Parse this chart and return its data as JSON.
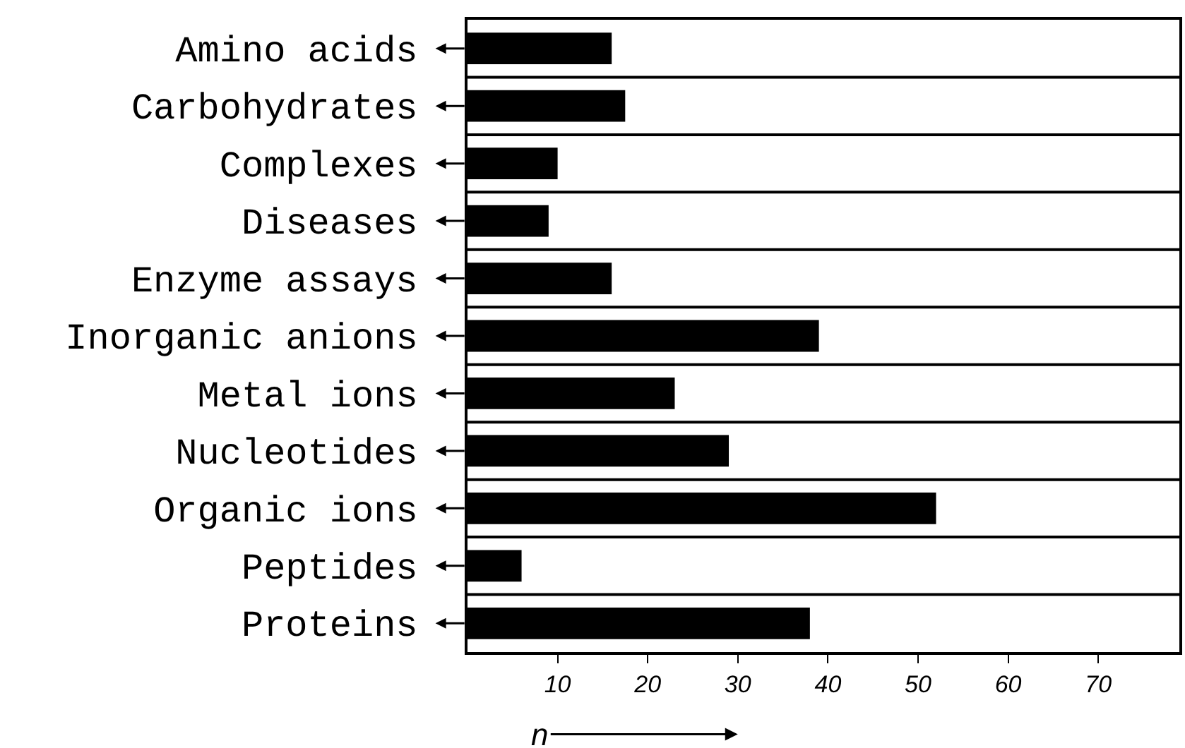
{
  "chart_data": {
    "type": "bar",
    "orientation": "horizontal",
    "xlabel": "n",
    "categories": [
      "Amino acids",
      "Carbohydrates",
      "Complexes",
      "Diseases",
      "Enzyme assays",
      "Inorganic anions",
      "Metal ions",
      "Nucleotides",
      "Organic ions",
      "Peptides",
      "Proteins"
    ],
    "values": [
      16,
      17.5,
      10,
      9,
      16,
      39,
      23,
      29,
      52,
      6,
      38
    ],
    "color": "#000000",
    "xlim": [
      0,
      79
    ],
    "xticks": [
      10,
      20,
      30,
      40,
      50,
      60,
      70
    ],
    "grid": "y"
  }
}
